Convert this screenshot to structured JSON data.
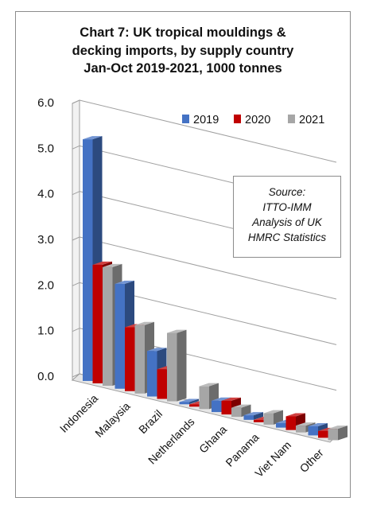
{
  "chart_data": {
    "type": "bar",
    "title": "Chart 7: UK tropical mouldings &\ndecking imports, by supply country\nJan-Oct 2019-2021, 1000 tonnes",
    "categories": [
      "Indonesia",
      "Malaysia",
      "Brazil",
      "Netherlands",
      "Ghana",
      "Panama",
      "Viet Nam",
      "Other"
    ],
    "series": [
      {
        "name": "2019",
        "color": "#4472c4",
        "values": [
          5.3,
          2.3,
          1.0,
          0.05,
          0.25,
          0.1,
          0.1,
          0.2
        ]
      },
      {
        "name": "2020",
        "color": "#c00000",
        "values": [
          2.6,
          1.4,
          0.65,
          0.05,
          0.3,
          0.05,
          0.3,
          0.15
        ]
      },
      {
        "name": "2021",
        "color": "#a6a6a6",
        "values": [
          2.6,
          1.5,
          1.5,
          0.5,
          0.2,
          0.25,
          0.15,
          0.25
        ]
      }
    ],
    "yticks": [
      "0.0",
      "1.0",
      "2.0",
      "3.0",
      "4.0",
      "5.0",
      "6.0"
    ],
    "ylim": [
      0,
      6
    ],
    "xlabel": "",
    "ylabel": "",
    "legend_position": "top-right",
    "grid": true,
    "style": "3d-clustered-bar"
  },
  "source_note": {
    "lines": [
      "Source:",
      "ITTO-IMM",
      "Analysis of UK",
      "HMRC Statistics"
    ]
  }
}
